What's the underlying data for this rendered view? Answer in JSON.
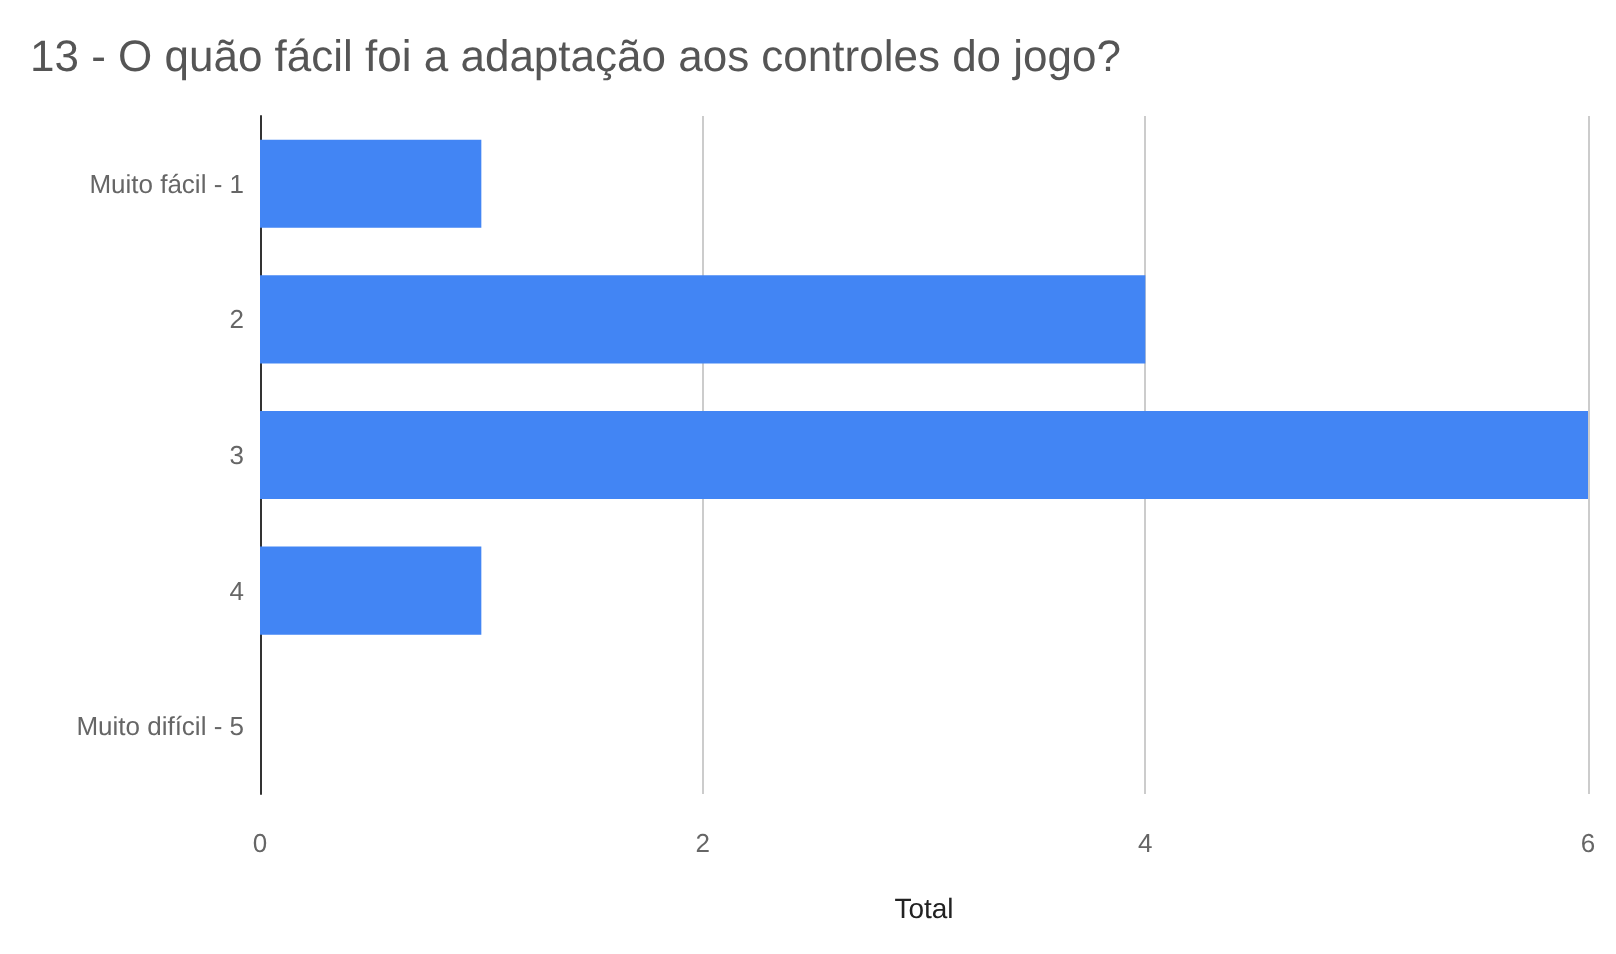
{
  "chart_data": {
    "type": "bar",
    "orientation": "horizontal",
    "title": "13 - O quão fácil foi a adaptação aos controles do jogo?",
    "xlabel": "Total",
    "categories": [
      "Muito fácil - 1",
      "2",
      "3",
      "4",
      "Muito difícil - 5"
    ],
    "values": [
      1,
      4,
      6,
      1,
      0
    ],
    "color": "#4285f4",
    "xlim": [
      0,
      6
    ],
    "xticks": [
      0,
      2,
      4,
      6
    ],
    "grid": "x"
  }
}
